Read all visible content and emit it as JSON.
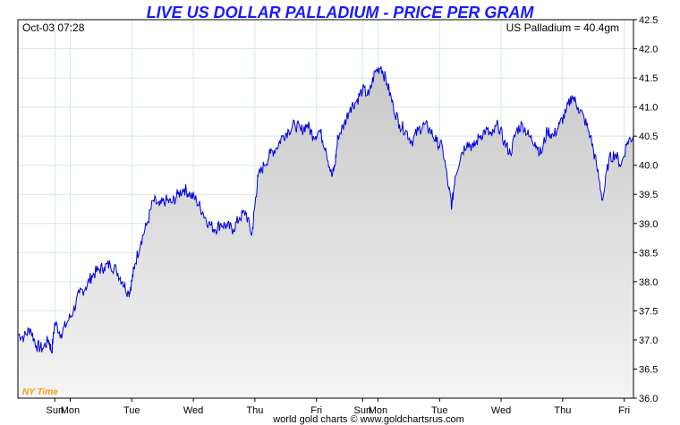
{
  "colors": {
    "title": "#1a1aff",
    "line": "#0000dd",
    "fill_top": "#c8c8c8",
    "fill_bottom": "#f4f4f4",
    "grid": "#d6e6e6",
    "timezone": "#f0a000"
  },
  "header": {
    "timestamp": "Oct-03  07:28",
    "current_price": "US Palladium = 40.4gm"
  },
  "footer": {
    "credit": "world gold charts © www.goldchartsrus.com",
    "timezone": "NY Time"
  },
  "chart_data": {
    "type": "area",
    "title": "LIVE US DOLLAR PALLADIUM - PRICE PER GRAM",
    "xlabel": "",
    "ylabel": "",
    "ylim": [
      36.0,
      42.5
    ],
    "y_ticks": [
      "36.0",
      "36.5",
      "37.0",
      "37.5",
      "38.0",
      "38.5",
      "39.0",
      "39.5",
      "40.0",
      "40.5",
      "41.0",
      "41.5",
      "42.0",
      "42.5"
    ],
    "x_ticks": [
      {
        "label": "Sun",
        "pos": 0.06
      },
      {
        "label": "Mon",
        "pos": 0.085
      },
      {
        "label": "Tue",
        "pos": 0.185
      },
      {
        "label": "Wed",
        "pos": 0.285
      },
      {
        "label": "Thu",
        "pos": 0.385
      },
      {
        "label": "Fri",
        "pos": 0.485
      },
      {
        "label": "Sun",
        "pos": 0.56
      },
      {
        "label": "Mon",
        "pos": 0.585
      },
      {
        "label": "Tue",
        "pos": 0.685
      },
      {
        "label": "Wed",
        "pos": 0.785
      },
      {
        "label": "Thu",
        "pos": 0.885
      },
      {
        "label": "Fri",
        "pos": 0.985
      }
    ],
    "xlim": [
      0,
      1
    ],
    "grid": true,
    "legend": "none",
    "series": [
      {
        "x": [
          0.0,
          0.01,
          0.02,
          0.03,
          0.04,
          0.05,
          0.055,
          0.06,
          0.07,
          0.08,
          0.09,
          0.1,
          0.11,
          0.12,
          0.13,
          0.14,
          0.15,
          0.16,
          0.17,
          0.18,
          0.185,
          0.19,
          0.2,
          0.21,
          0.22,
          0.23,
          0.24,
          0.25,
          0.26,
          0.27,
          0.28,
          0.29,
          0.3,
          0.31,
          0.32,
          0.33,
          0.34,
          0.35,
          0.36,
          0.37,
          0.38,
          0.385,
          0.39,
          0.4,
          0.41,
          0.42,
          0.43,
          0.44,
          0.45,
          0.46,
          0.47,
          0.48,
          0.49,
          0.5,
          0.51,
          0.515,
          0.52,
          0.53,
          0.54,
          0.55,
          0.56,
          0.57,
          0.58,
          0.59,
          0.6,
          0.61,
          0.62,
          0.63,
          0.64,
          0.65,
          0.66,
          0.67,
          0.68,
          0.69,
          0.7,
          0.705,
          0.71,
          0.72,
          0.73,
          0.74,
          0.75,
          0.76,
          0.77,
          0.78,
          0.79,
          0.8,
          0.81,
          0.82,
          0.83,
          0.84,
          0.85,
          0.86,
          0.87,
          0.88,
          0.89,
          0.9,
          0.91,
          0.92,
          0.93,
          0.94,
          0.95,
          0.96,
          0.97,
          0.98,
          0.99,
          1.0
        ],
        "y": [
          37.1,
          37.05,
          37.2,
          36.9,
          36.85,
          37.0,
          36.8,
          37.3,
          37.1,
          37.3,
          37.5,
          37.8,
          37.9,
          38.1,
          38.2,
          38.25,
          38.3,
          38.2,
          38.0,
          37.8,
          38.0,
          38.3,
          38.7,
          39.0,
          39.4,
          39.3,
          39.4,
          39.35,
          39.5,
          39.6,
          39.5,
          39.4,
          39.2,
          39.0,
          38.9,
          39.0,
          38.95,
          38.9,
          39.1,
          39.2,
          38.8,
          39.3,
          39.8,
          40.0,
          40.2,
          40.3,
          40.5,
          40.6,
          40.7,
          40.6,
          40.7,
          40.5,
          40.6,
          40.3,
          39.8,
          40.0,
          40.5,
          40.7,
          41.0,
          41.1,
          41.3,
          41.2,
          41.6,
          41.7,
          41.4,
          41.0,
          40.7,
          40.6,
          40.4,
          40.6,
          40.7,
          40.6,
          40.4,
          40.3,
          39.6,
          39.3,
          39.8,
          40.2,
          40.4,
          40.3,
          40.5,
          40.6,
          40.5,
          40.7,
          40.4,
          40.2,
          40.6,
          40.7,
          40.5,
          40.4,
          40.2,
          40.6,
          40.5,
          40.7,
          40.9,
          41.2,
          41.0,
          40.8,
          40.5,
          40.0,
          39.4,
          40.1,
          40.2,
          40.0,
          40.4,
          40.5
        ]
      }
    ]
  }
}
